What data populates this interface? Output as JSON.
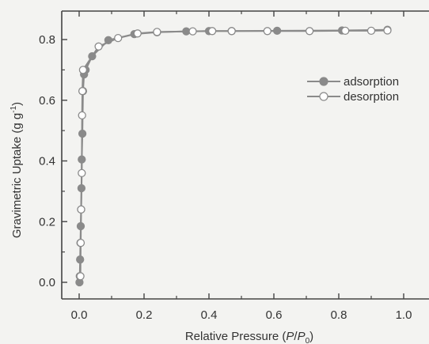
{
  "chart_data": {
    "type": "scatter",
    "xlabel_main": "Relative Pressure (",
    "xlabel_p": "P",
    "xlabel_slash": "/",
    "xlabel_p0": "P",
    "xlabel_sub": "0",
    "xlabel_close": ")",
    "ylabel_main": "Gravimetric Uptake (g g",
    "ylabel_sup": "-1",
    "ylabel_close": ")",
    "xlim": [
      0,
      1.0
    ],
    "ylim": [
      0,
      0.84
    ],
    "xticks": [
      "0.0",
      "0.2",
      "0.4",
      "0.6",
      "0.8",
      "1.0"
    ],
    "yticks": [
      "0.0",
      "0.2",
      "0.4",
      "0.6",
      "0.8"
    ],
    "legend_position": "upper-right",
    "colors": {
      "series": "#8a8a8a",
      "axis": "#444444",
      "background": "#f3f3f1"
    },
    "series": [
      {
        "name": "adsorption",
        "marker": "filled-circle",
        "x": [
          0.001,
          0.002,
          0.003,
          0.004,
          0.005,
          0.006,
          0.007,
          0.008,
          0.01,
          0.012,
          0.015,
          0.02,
          0.04,
          0.09,
          0.17,
          0.24,
          0.33,
          0.4,
          0.47,
          0.61,
          0.81,
          0.95
        ],
        "y": [
          0.0,
          0.02,
          0.075,
          0.13,
          0.185,
          0.24,
          0.31,
          0.405,
          0.49,
          0.63,
          0.685,
          0.7,
          0.745,
          0.798,
          0.818,
          0.824,
          0.827,
          0.828,
          0.828,
          0.829,
          0.83,
          0.832
        ]
      },
      {
        "name": "desorption",
        "marker": "open-circle",
        "x": [
          0.95,
          0.9,
          0.82,
          0.71,
          0.58,
          0.47,
          0.41,
          0.35,
          0.24,
          0.18,
          0.12,
          0.06,
          0.012,
          0.01,
          0.009,
          0.008,
          0.006,
          0.005,
          0.004
        ],
        "y": [
          0.83,
          0.829,
          0.829,
          0.828,
          0.828,
          0.828,
          0.828,
          0.827,
          0.825,
          0.82,
          0.805,
          0.777,
          0.7,
          0.63,
          0.55,
          0.36,
          0.24,
          0.13,
          0.02
        ]
      }
    ]
  }
}
